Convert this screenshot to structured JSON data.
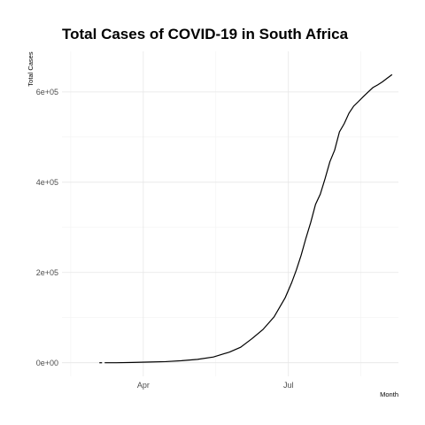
{
  "chart_data": {
    "type": "line",
    "title": "Total Cases of COVID-19 in South Africa",
    "xlabel": "Month",
    "ylabel": "Total Cases",
    "x_ticks": [
      {
        "date": "2020-04-01",
        "label": "Apr"
      },
      {
        "date": "2020-07-01",
        "label": "Jul"
      }
    ],
    "y_ticks": [
      {
        "value": 0,
        "label": "0e+00"
      },
      {
        "value": 200000,
        "label": "2e+05"
      },
      {
        "value": 400000,
        "label": "4e+05"
      },
      {
        "value": 600000,
        "label": "6e+05"
      }
    ],
    "xlim": [
      "2020-02-10",
      "2020-09-08"
    ],
    "ylim": [
      -30000,
      690000
    ],
    "grid": true,
    "series": [
      {
        "color": "#000000",
        "x": [
          "2020-03-05",
          "2020-03-15",
          "2020-03-25",
          "2020-04-05",
          "2020-04-15",
          "2020-04-25",
          "2020-05-05",
          "2020-05-15",
          "2020-05-25",
          "2020-06-01",
          "2020-06-08",
          "2020-06-15",
          "2020-06-22",
          "2020-06-29",
          "2020-07-03",
          "2020-07-06",
          "2020-07-09",
          "2020-07-12",
          "2020-07-15",
          "2020-07-18",
          "2020-07-21",
          "2020-07-24",
          "2020-07-27",
          "2020-07-30",
          "2020-08-02",
          "2020-08-05",
          "2020-08-08",
          "2020-08-11",
          "2020-08-14",
          "2020-08-17",
          "2020-08-20",
          "2020-08-23",
          "2020-08-26",
          "2020-08-29",
          "2020-09-01",
          "2020-09-04"
        ],
        "y": [
          1,
          51,
          709,
          1655,
          2506,
          4546,
          7572,
          12739,
          23615,
          34357,
          52991,
          73533,
          101590,
          144264,
          177124,
          205721,
          238339,
          276242,
          311049,
          350879,
          373628,
          408052,
          445433,
          471123,
          511485,
          529877,
          553188,
          568919,
          579140,
          589886,
          599940,
          609773,
          615701,
          622551,
          630595,
          638517
        ]
      }
    ]
  }
}
